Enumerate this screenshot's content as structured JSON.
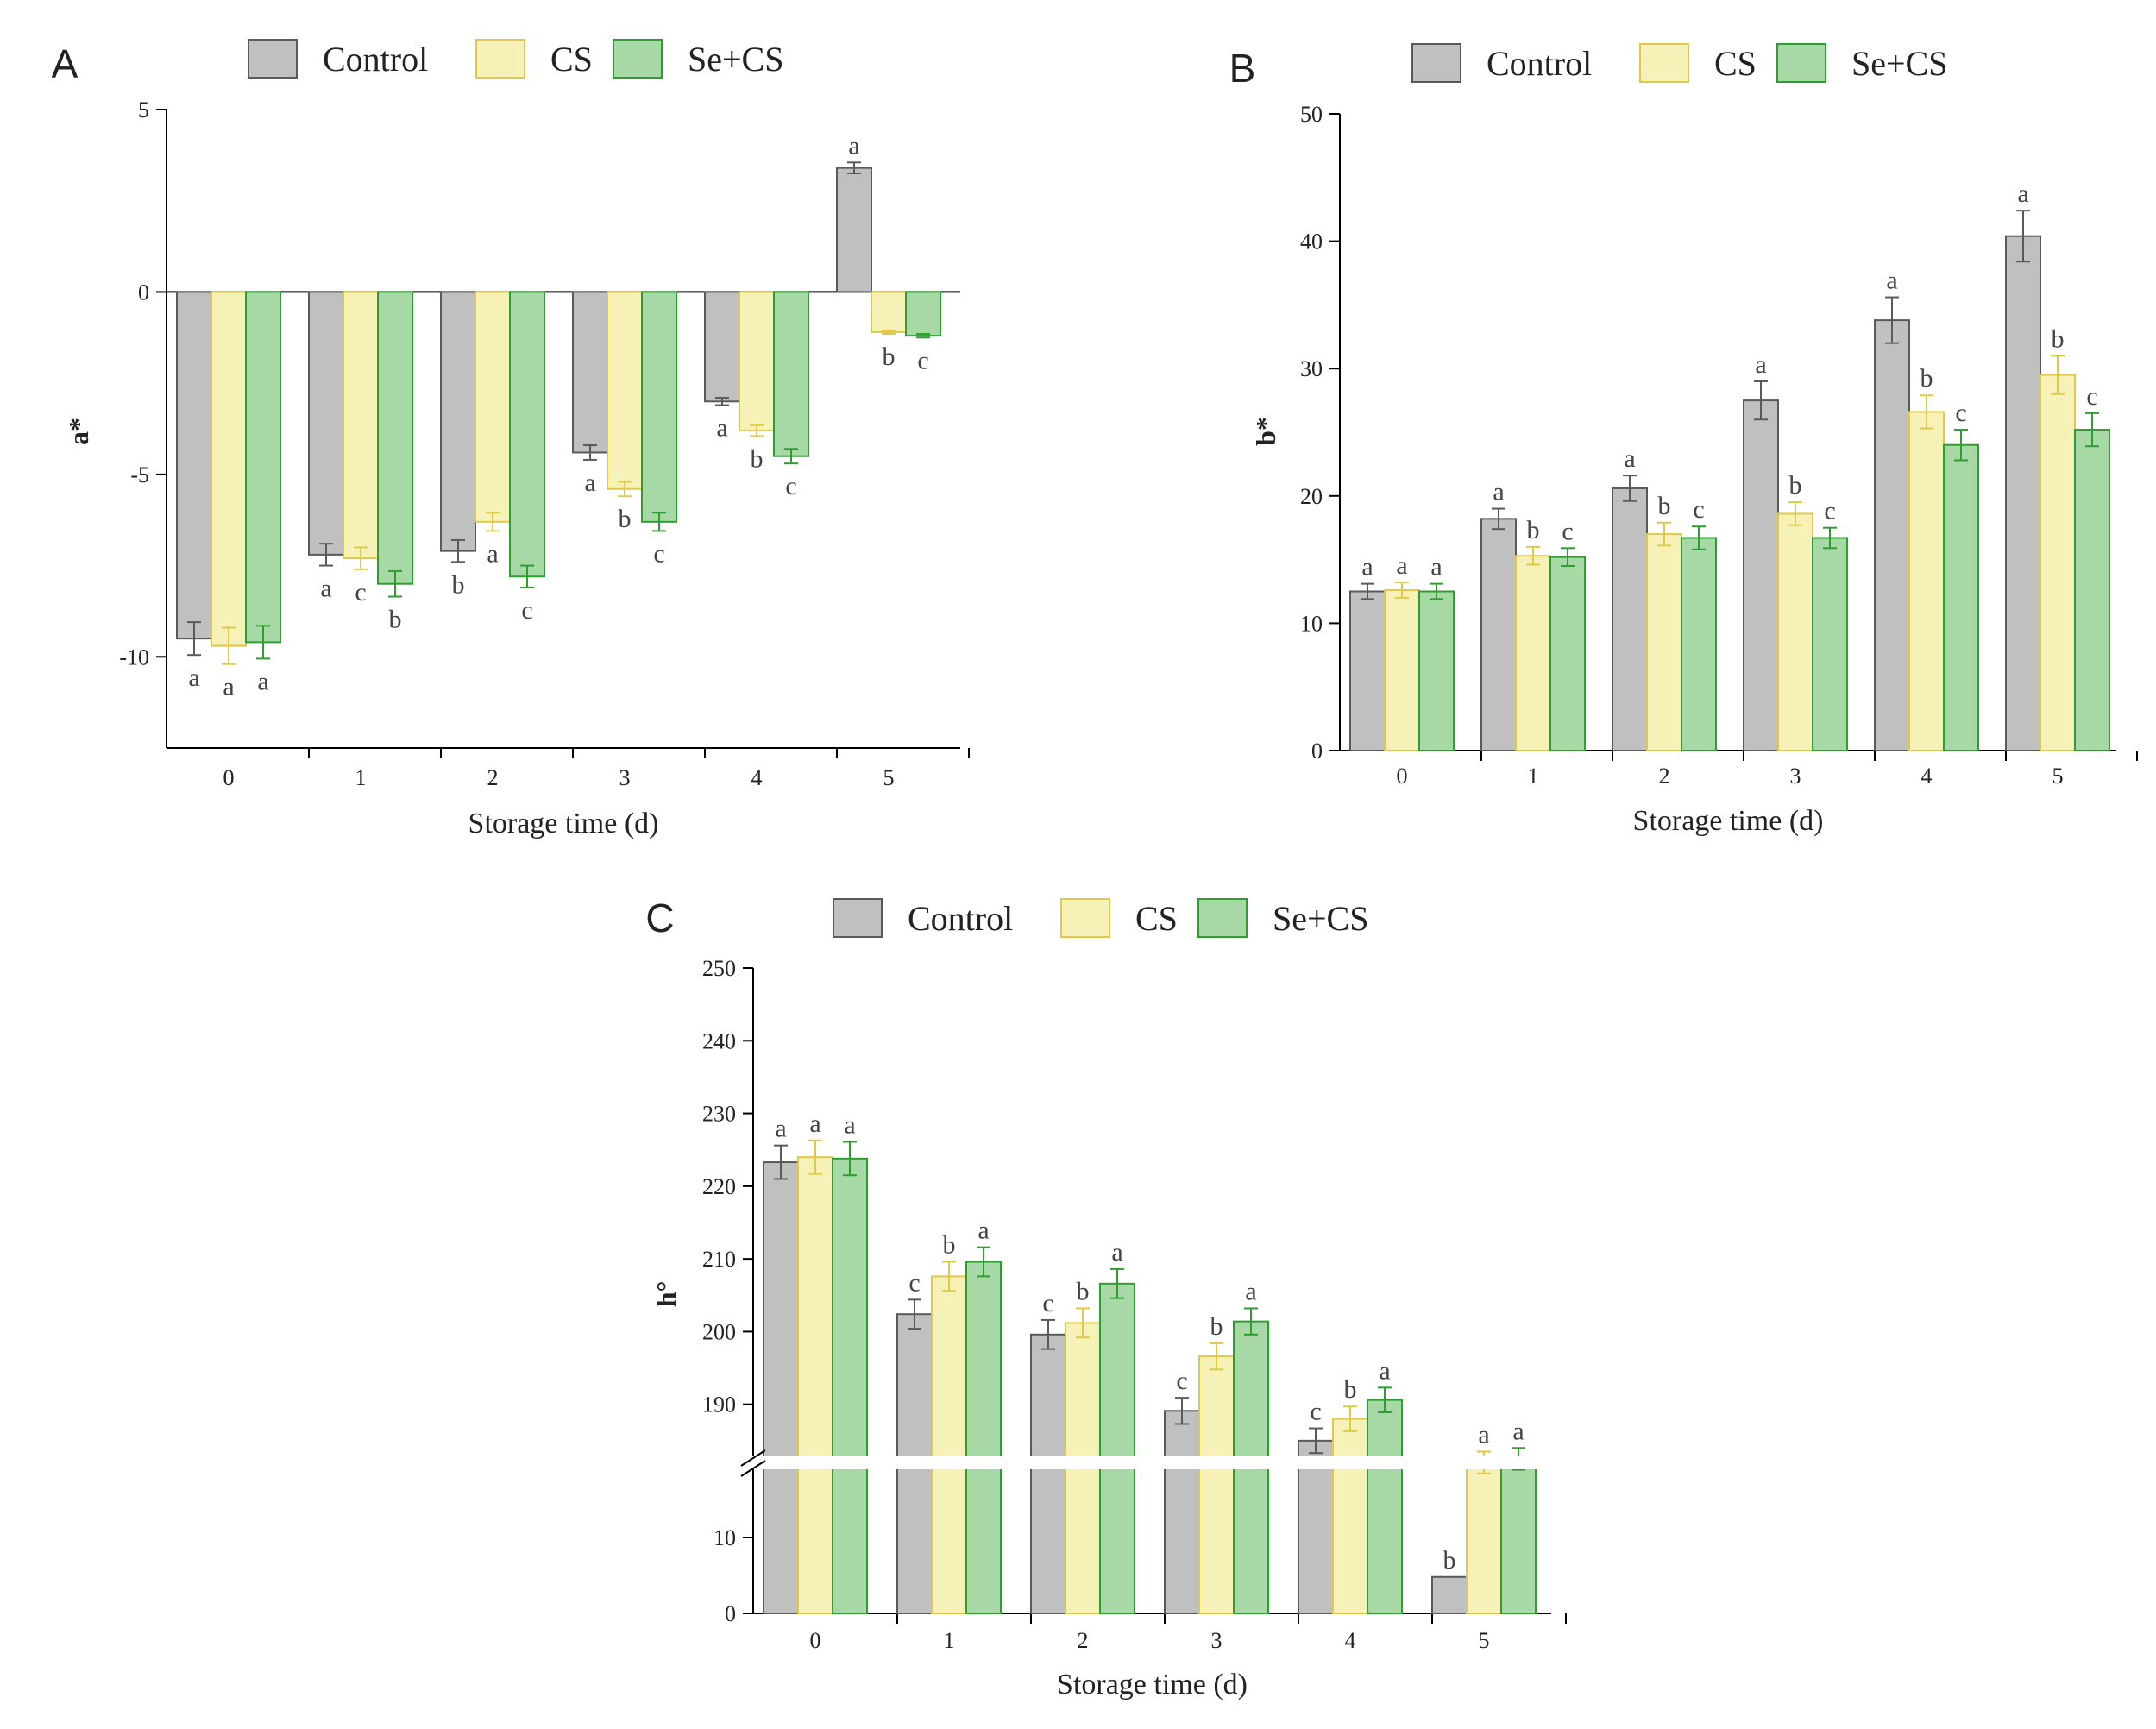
{
  "colors": {
    "control_fill": "#c0c0c0",
    "control_stroke": "#5a5a5a",
    "cs_fill": "#f6f1b6",
    "cs_stroke": "#e0c94a",
    "secs_fill": "#a6d9a6",
    "secs_stroke": "#2f9e2f",
    "axis": "#000000"
  },
  "chart_data": [
    {
      "panel": "A",
      "type": "bar",
      "title": "",
      "xlabel": "Storage time (d)",
      "ylabel": "a*",
      "categories": [
        "0",
        "1",
        "2",
        "3",
        "4",
        "5"
      ],
      "ylim": [
        -12.5,
        5
      ],
      "yticks": [
        5,
        0,
        -5,
        -10
      ],
      "series": [
        {
          "name": "Control",
          "values": [
            -9.5,
            -7.2,
            -7.1,
            -4.4,
            -3.0,
            3.4
          ],
          "errors": [
            0.45,
            0.3,
            0.3,
            0.2,
            0.1,
            0.15
          ],
          "letters": [
            "a",
            "a",
            "b",
            "a",
            "a",
            "a"
          ]
        },
        {
          "name": "CS",
          "values": [
            -9.7,
            -7.3,
            -6.3,
            -5.4,
            -3.8,
            -1.1
          ],
          "errors": [
            0.5,
            0.3,
            0.25,
            0.2,
            0.15,
            0.05
          ],
          "letters": [
            "a",
            "c",
            "a",
            "b",
            "b",
            "b"
          ]
        },
        {
          "name": "Se+CS",
          "values": [
            -9.6,
            -8.0,
            -7.8,
            -6.3,
            -4.5,
            -1.2
          ],
          "errors": [
            0.45,
            0.35,
            0.3,
            0.25,
            0.2,
            0.05
          ],
          "letters": [
            "a",
            "b",
            "c",
            "c",
            "c",
            "c"
          ]
        }
      ]
    },
    {
      "panel": "B",
      "type": "bar",
      "title": "",
      "xlabel": "Storage time (d)",
      "ylabel": "b*",
      "categories": [
        "0",
        "1",
        "2",
        "3",
        "4",
        "5"
      ],
      "ylim": [
        0,
        50
      ],
      "yticks": [
        0,
        10,
        20,
        30,
        40,
        50
      ],
      "series": [
        {
          "name": "Control",
          "values": [
            12.5,
            18.2,
            20.6,
            27.5,
            33.8,
            40.4
          ],
          "errors": [
            0.6,
            0.8,
            1.0,
            1.5,
            1.8,
            2.0
          ],
          "letters": [
            "a",
            "a",
            "a",
            "a",
            "a",
            "a"
          ]
        },
        {
          "name": "CS",
          "values": [
            12.6,
            15.3,
            17.0,
            18.6,
            26.6,
            29.5
          ],
          "errors": [
            0.6,
            0.7,
            0.9,
            0.9,
            1.3,
            1.5
          ],
          "letters": [
            "a",
            "b",
            "b",
            "b",
            "b",
            "b"
          ]
        },
        {
          "name": "Se+CS",
          "values": [
            12.5,
            15.2,
            16.7,
            16.7,
            24.0,
            25.2
          ],
          "errors": [
            0.6,
            0.7,
            0.9,
            0.8,
            1.2,
            1.3
          ],
          "letters": [
            "a",
            "c",
            "c",
            "c",
            "c",
            "c"
          ]
        }
      ]
    },
    {
      "panel": "C",
      "type": "bar",
      "title": "",
      "xlabel": "Storage time (d)",
      "ylabel": "h°",
      "categories": [
        "0",
        "1",
        "2",
        "3",
        "4",
        "5"
      ],
      "axis_break": {
        "lower": [
          0,
          20
        ],
        "upper": [
          180,
          250
        ]
      },
      "yticks": [
        0,
        10,
        190,
        200,
        210,
        220,
        230,
        240,
        250
      ],
      "series": [
        {
          "name": "Control",
          "values": [
            223.3,
            202.4,
            199.6,
            189.1,
            185.0,
            4.8
          ],
          "errors": [
            2.3,
            2.0,
            2.0,
            1.8,
            1.7,
            0
          ],
          "letters": [
            "a",
            "c",
            "c",
            "c",
            "c",
            "b"
          ]
        },
        {
          "name": "CS",
          "values": [
            224.0,
            207.6,
            201.2,
            196.6,
            188.0,
            182.0
          ],
          "errors": [
            2.3,
            2.0,
            2.0,
            1.8,
            1.7,
            1.5
          ],
          "letters": [
            "a",
            "b",
            "b",
            "b",
            "b",
            "a"
          ]
        },
        {
          "name": "Se+CS",
          "values": [
            223.8,
            209.6,
            206.6,
            201.4,
            190.6,
            182.5
          ],
          "errors": [
            2.3,
            2.0,
            2.0,
            1.8,
            1.7,
            1.5
          ],
          "letters": [
            "a",
            "a",
            "a",
            "a",
            "a",
            "a"
          ]
        }
      ]
    }
  ]
}
